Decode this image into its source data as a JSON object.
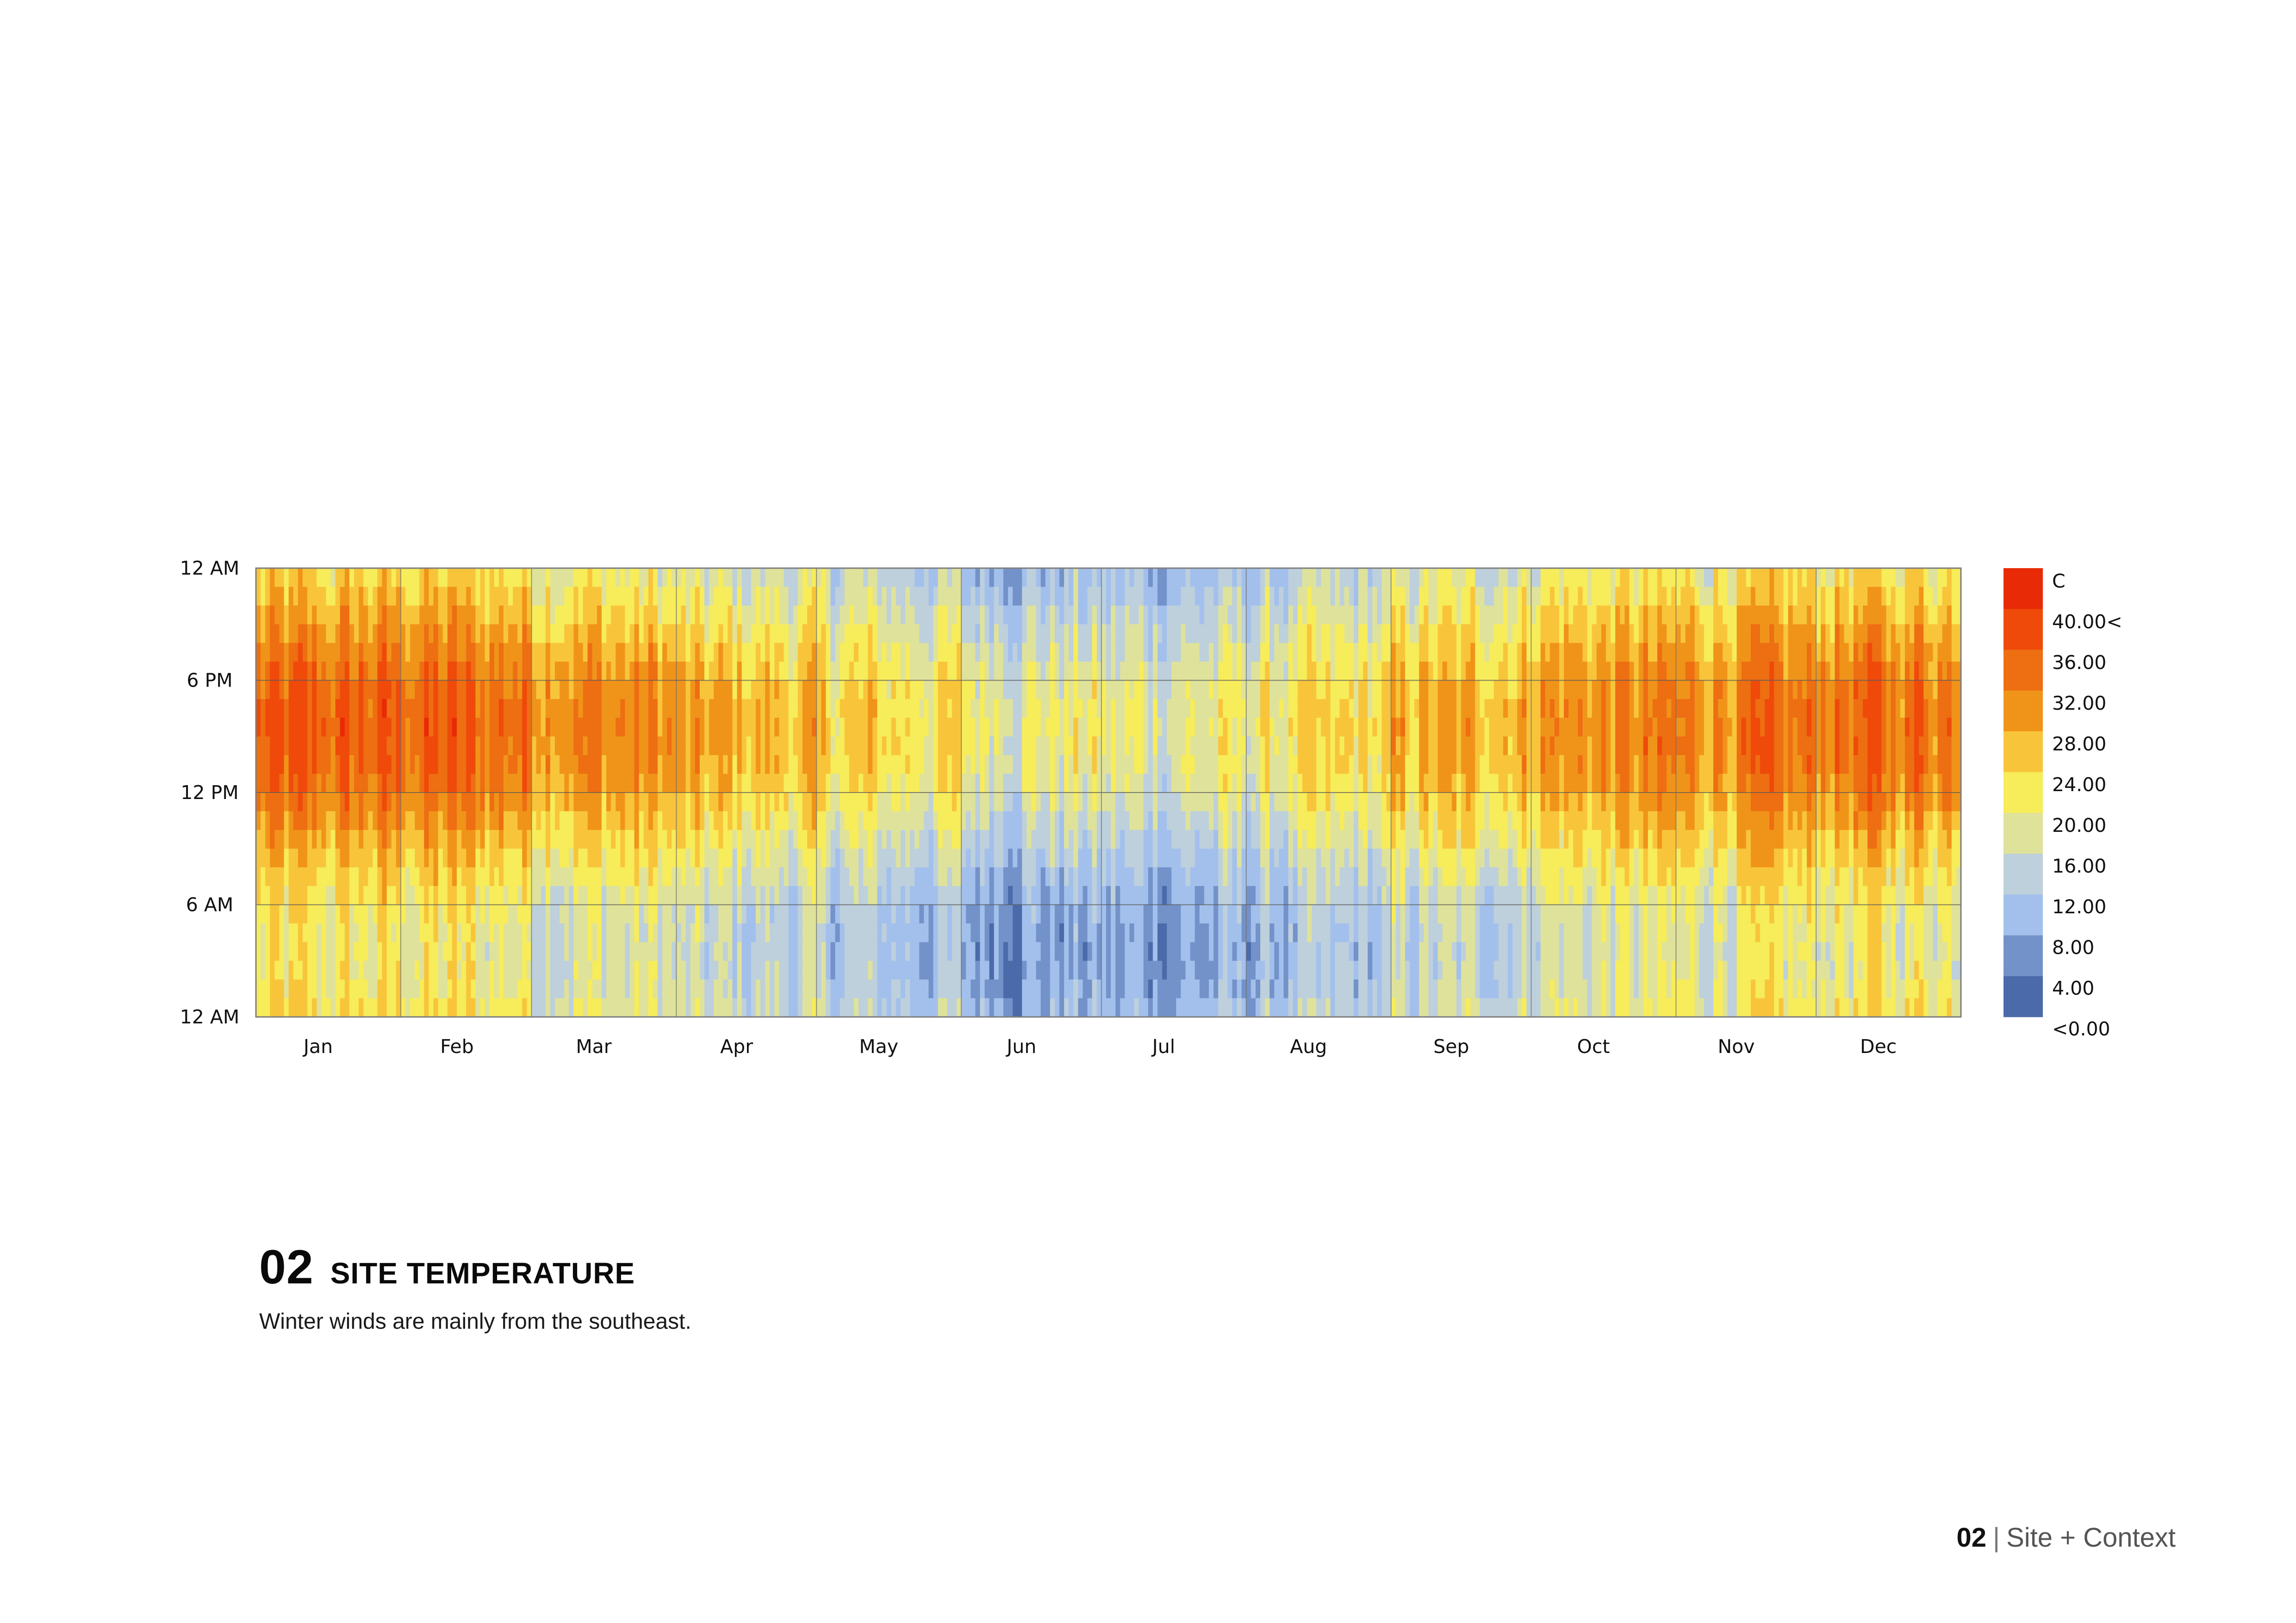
{
  "chart_data": {
    "type": "heatmap",
    "title": "",
    "unit": "C",
    "x_categories": [
      "Jan",
      "Feb",
      "Mar",
      "Apr",
      "May",
      "Jun",
      "Jul",
      "Aug",
      "Sep",
      "Oct",
      "Nov",
      "Dec"
    ],
    "y_tick_labels": [
      "12 AM",
      "6 PM",
      "12 PM",
      "6 AM",
      "12 AM"
    ],
    "hours_per_day": 24,
    "days": 365,
    "value_range": [
      0,
      40
    ],
    "monthly_peak_daytime_temp_c": [
      35,
      36,
      33,
      28,
      25,
      21,
      19,
      21,
      27,
      31,
      32,
      34
    ],
    "monthly_night_temp_c": [
      20,
      21,
      18,
      14,
      12,
      8,
      7,
      9,
      13,
      17,
      18,
      20
    ],
    "grid": "vertical lines at month boundaries, horizontal lines every 6 hours",
    "legend": {
      "title": "C",
      "labels": [
        "40.00<",
        "36.00",
        "32.00",
        "28.00",
        "24.00",
        "20.00",
        "16.00",
        "12.00",
        "8.00",
        "4.00",
        "<0.00"
      ],
      "colors": [
        "#e82a07",
        "#ef4a0a",
        "#ee6e12",
        "#f09419",
        "#f8c53a",
        "#f7ec5a",
        "#dfe29a",
        "#bdd0dc",
        "#a3c0ec",
        "#7392c9",
        "#4b6aa9"
      ]
    }
  },
  "caption": {
    "section_number": "02",
    "title": "SITE TEMPERATURE",
    "description": "Winter winds are mainly from the southeast."
  },
  "footer": {
    "number": "02",
    "separator": "|",
    "label": "Site + Context"
  }
}
